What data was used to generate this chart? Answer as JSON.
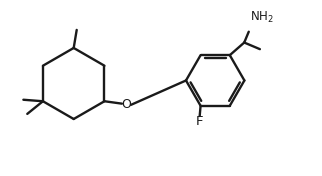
{
  "background": "#ffffff",
  "bond_color": "#1a1a1a",
  "line_width": 1.7,
  "F_color": "#1a1a1a",
  "O_color": "#1a1a1a",
  "NH2_color": "#1a1a1a",
  "figsize": [
    3.22,
    1.76
  ],
  "dpi": 100,
  "xlim": [
    0,
    10.5
  ],
  "ylim": [
    0,
    5.8
  ]
}
